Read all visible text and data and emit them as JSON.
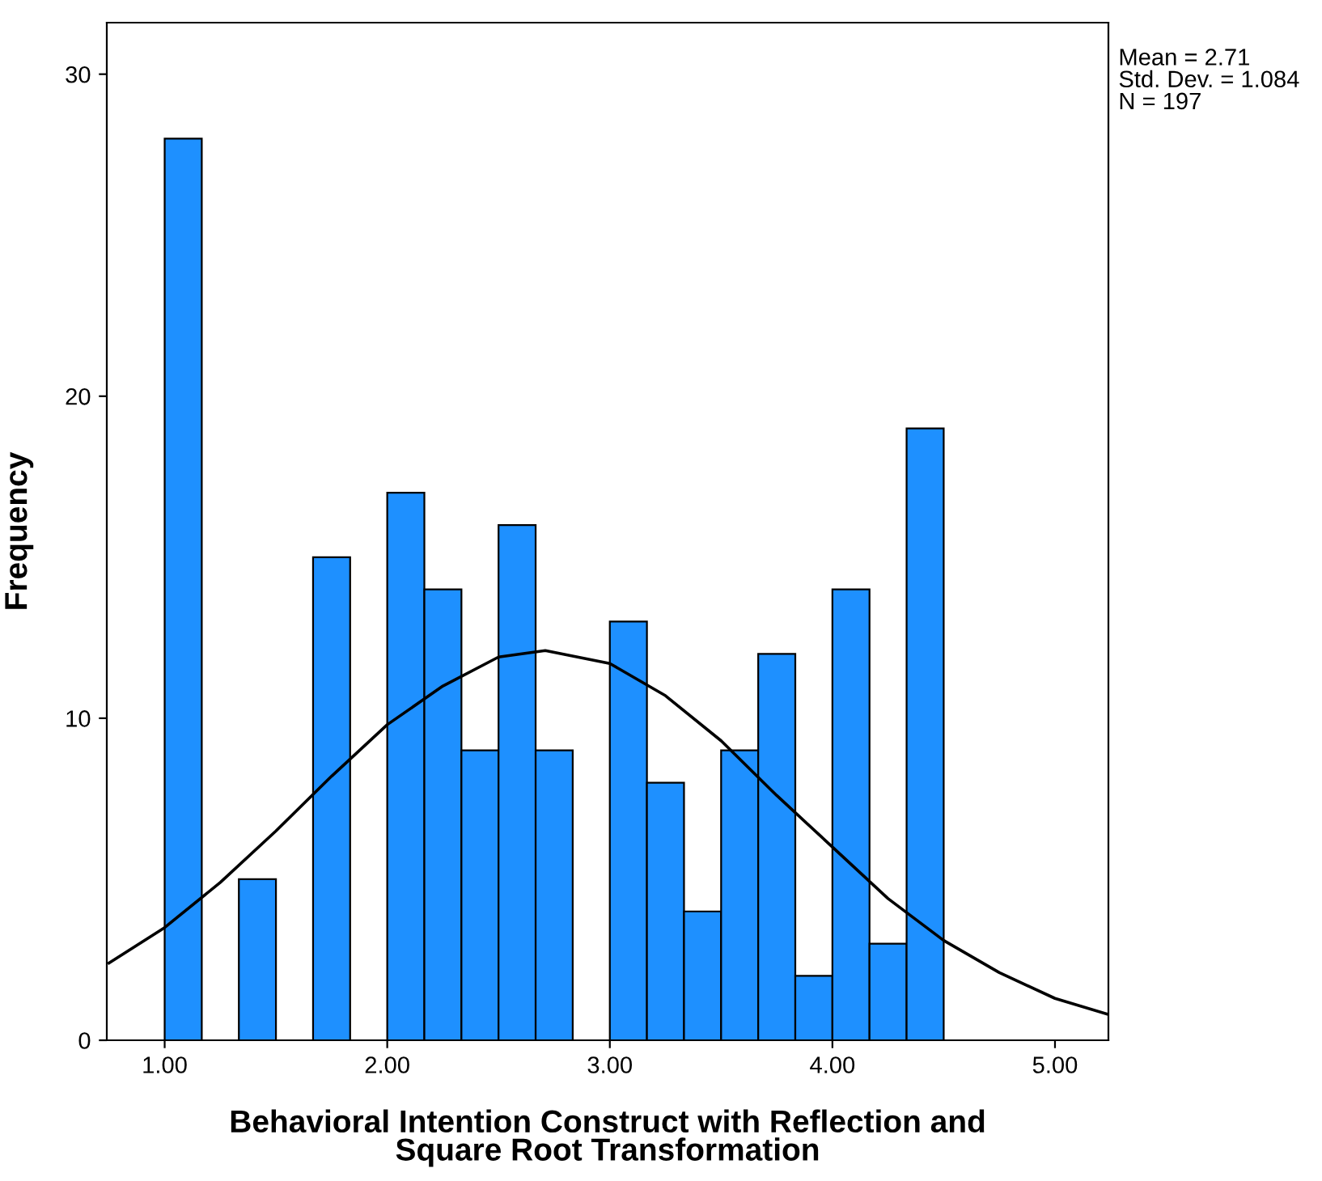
{
  "chart_data": {
    "type": "histogram",
    "xlabel": "Behavioral Intention Construct with Reflection and\nSquare Root Transformation",
    "ylabel": "Frequency",
    "bins": [
      1.0,
      1.1667,
      1.3333,
      1.5,
      1.6667,
      1.8333,
      2.0,
      2.1667,
      2.3333,
      2.5,
      2.6667,
      2.8333,
      3.0,
      3.1667,
      3.3333,
      3.5,
      3.6667,
      3.8333,
      4.0,
      4.1667,
      4.3333,
      4.5
    ],
    "values": [
      28,
      0,
      5,
      0,
      15,
      0,
      17,
      14,
      9,
      16,
      9,
      0,
      13,
      8,
      4,
      9,
      12,
      2,
      14,
      3,
      19
    ],
    "color": "#1e90ff",
    "series": [
      {
        "type": "line",
        "color": "#000000",
        "x": [
          0.75,
          1.0,
          1.25,
          1.5,
          1.75,
          2.0,
          2.25,
          2.5,
          2.71,
          3.0,
          3.25,
          3.5,
          3.75,
          4.0,
          4.25,
          4.5,
          4.75,
          5.0,
          5.24
        ],
        "values": [
          2.4,
          3.5,
          4.9,
          6.5,
          8.2,
          9.8,
          11.0,
          11.9,
          12.1,
          11.7,
          10.7,
          9.3,
          7.6,
          6.0,
          4.4,
          3.1,
          2.1,
          1.3,
          0.8
        ]
      }
    ],
    "xlim": [
      0.74,
      5.24
    ],
    "xticks": [
      {
        "value": 1,
        "label": "1.00"
      },
      {
        "value": 2,
        "label": "2.00"
      },
      {
        "value": 3,
        "label": "3.00"
      },
      {
        "value": 4,
        "label": "4.00"
      },
      {
        "value": 5,
        "label": "5.00"
      }
    ],
    "ylim": [
      0,
      31.6
    ],
    "yticks": [
      0,
      10,
      20,
      30
    ],
    "grid": false,
    "annotations": [
      "Mean = 2.71\nStd. Dev. = 1.084\nN = 197"
    ]
  }
}
